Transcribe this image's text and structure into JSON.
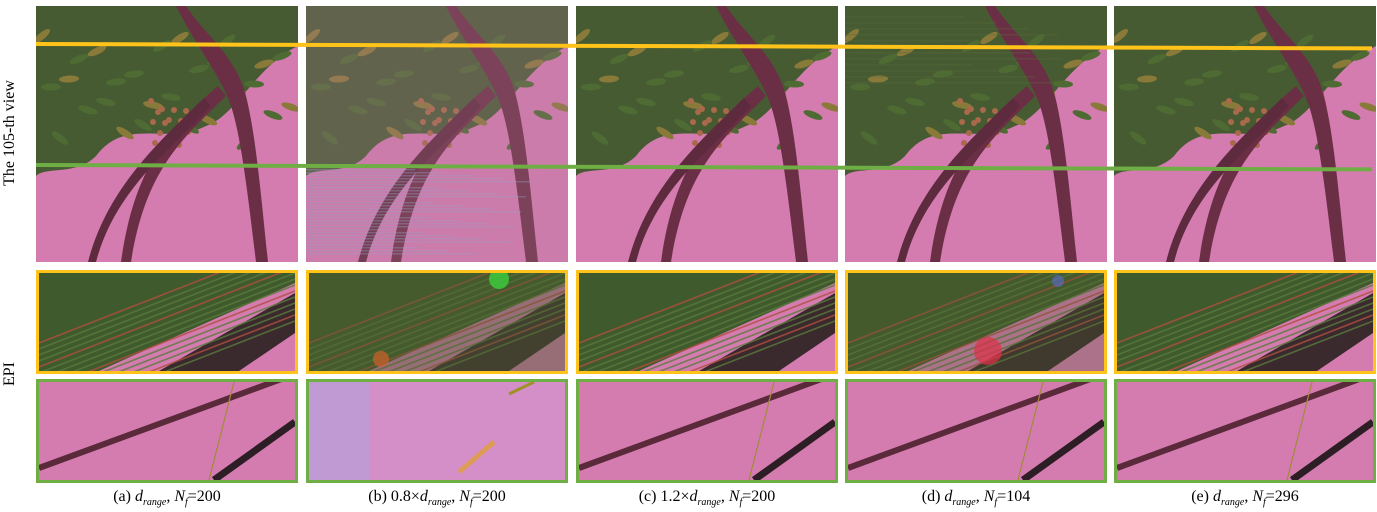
{
  "row_labels": {
    "view": "The 105-th view",
    "epi": "EPI"
  },
  "columns": [
    {
      "id": "a",
      "prefix": "(a) ",
      "mult": "",
      "d": "d",
      "d_sub": "range",
      "sep": ", ",
      "n": "N",
      "n_sub": "f",
      "value": "=200",
      "artifact": "none"
    },
    {
      "id": "b",
      "prefix": "(b) ",
      "mult": "0.8×",
      "d": "d",
      "d_sub": "range",
      "sep": ", ",
      "n": "N",
      "n_sub": "f",
      "value": "=200",
      "artifact": "heavy-blur"
    },
    {
      "id": "c",
      "prefix": "(c) ",
      "mult": "1.2×",
      "d": "d",
      "d_sub": "range",
      "sep": ", ",
      "n": "N",
      "n_sub": "f",
      "value": "=200",
      "artifact": "none"
    },
    {
      "id": "d",
      "prefix": "(d) ",
      "mult": "",
      "d": "d",
      "d_sub": "range",
      "sep": ", ",
      "n": "N",
      "n_sub": "f",
      "value": "=104",
      "artifact": "mild-blur"
    },
    {
      "id": "e",
      "prefix": "(e) ",
      "mult": "",
      "d": "d",
      "d_sub": "range",
      "sep": ", ",
      "n": "N",
      "n_sub": "f",
      "value": "=296",
      "artifact": "none"
    }
  ],
  "colors": {
    "yellow_line": "#ffc31a",
    "green_line": "#6fae44",
    "background_pink": "#d47cb0",
    "foliage": "#3f5a2c",
    "trunk": "#6b2f45"
  }
}
